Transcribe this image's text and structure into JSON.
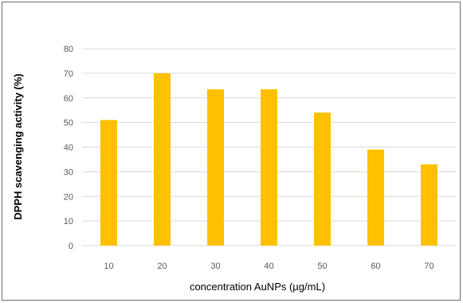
{
  "chart_data": {
    "type": "bar",
    "categories": [
      "10",
      "20",
      "30",
      "40",
      "50",
      "60",
      "70"
    ],
    "values": [
      51,
      70,
      63.5,
      63.5,
      54,
      39,
      33
    ],
    "xlabel": "concentration AuNPs (µg/mL)",
    "ylabel": "DPPH scavenging activity (%)",
    "ylim": [
      0,
      80
    ],
    "yticks": [
      0,
      10,
      20,
      30,
      40,
      50,
      60,
      70,
      80
    ],
    "grid": true,
    "bar_color": "#FFC000",
    "gridline_color": "#D9D9D9"
  }
}
